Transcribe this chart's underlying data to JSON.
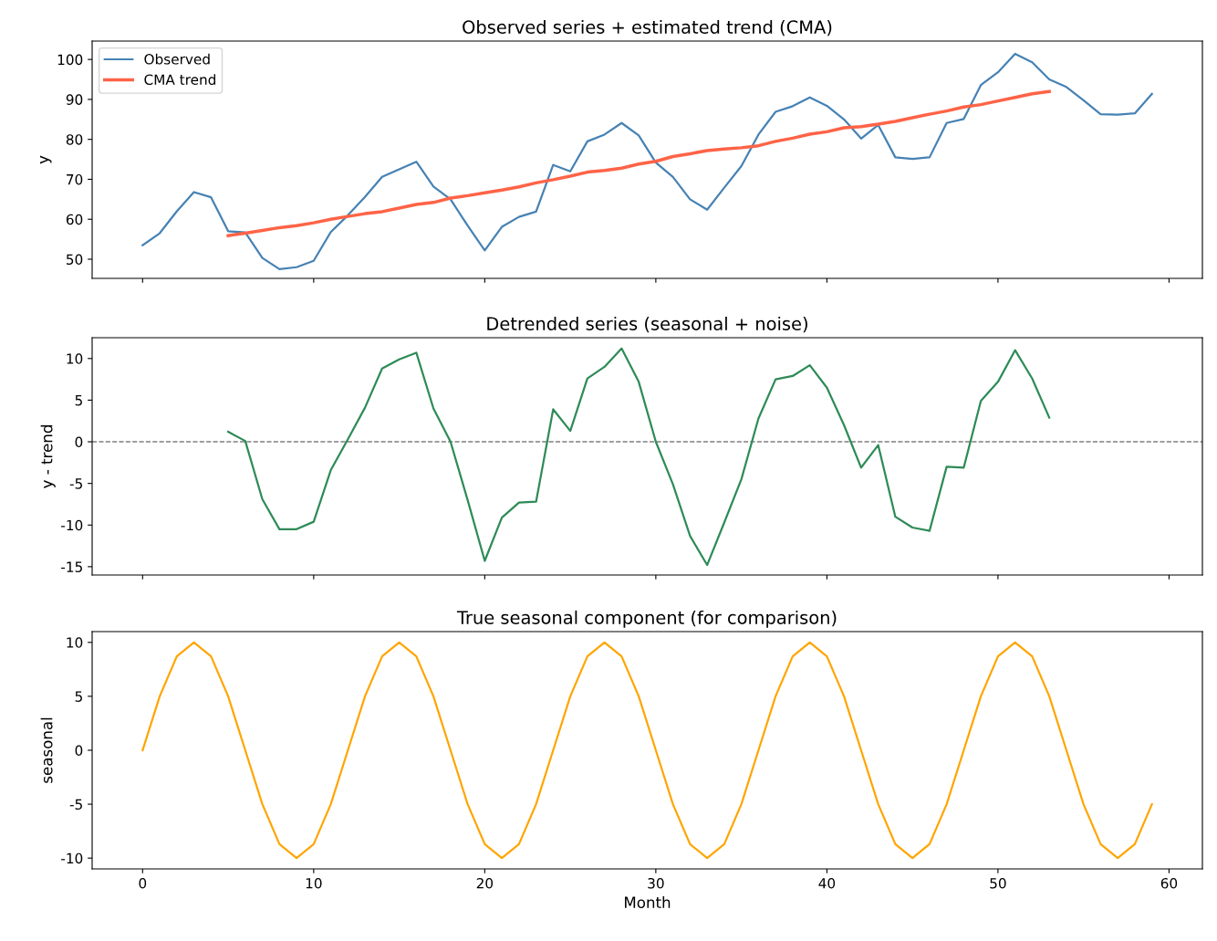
{
  "chart_data": [
    {
      "type": "line",
      "title": "Observed series + estimated trend (CMA)",
      "ylabel": "y",
      "xlim": [
        -2.95,
        61.95
      ],
      "xticks": [
        0,
        10,
        20,
        30,
        40,
        50,
        60
      ],
      "ylim": [
        45.2,
        104.6
      ],
      "yticks": [
        50,
        60,
        70,
        80,
        90,
        100
      ],
      "tick_labels": "y",
      "grid": false,
      "legend": "top left",
      "series": [
        {
          "name": "Observed",
          "color": "#4682b4",
          "x": [
            0,
            1,
            2,
            3,
            4,
            5,
            6,
            7,
            8,
            9,
            10,
            11,
            12,
            13,
            14,
            15,
            16,
            17,
            18,
            19,
            20,
            21,
            22,
            23,
            24,
            25,
            26,
            27,
            28,
            29,
            30,
            31,
            32,
            33,
            34,
            35,
            36,
            37,
            38,
            39,
            40,
            41,
            42,
            43,
            44,
            45,
            46,
            47,
            48,
            49,
            50,
            51,
            52,
            53,
            54,
            55,
            56,
            57,
            58,
            59
          ],
          "values": [
            53.5,
            56.5,
            62,
            66.8,
            65.5,
            57,
            56.7,
            50.3,
            47.5,
            48,
            49.6,
            56.8,
            61,
            65.6,
            70.6,
            72.5,
            74.4,
            68.2,
            65,
            58.4,
            52.2,
            58.1,
            60.6,
            61.9,
            73.6,
            72,
            79.5,
            81.2,
            84.1,
            81,
            74.2,
            70.6,
            65,
            62.4,
            67.9,
            73.3,
            81.2,
            86.9,
            88.3,
            90.5,
            88.4,
            85,
            80.2,
            83.6,
            75.5,
            75.1,
            75.5,
            84.1,
            85.1,
            93.6,
            96.8,
            101.4,
            99.3,
            95,
            93.1,
            89.8,
            86.3,
            86.2,
            86.5,
            91.4
          ]
        },
        {
          "name": "CMA trend",
          "color": "#ff6347",
          "x": [
            5,
            6,
            7,
            8,
            9,
            10,
            11,
            12,
            13,
            14,
            15,
            16,
            17,
            18,
            19,
            20,
            21,
            22,
            23,
            24,
            25,
            26,
            27,
            28,
            29,
            30,
            31,
            32,
            33,
            34,
            35,
            36,
            37,
            38,
            39,
            40,
            41,
            42,
            43,
            44,
            45,
            46,
            47,
            48,
            49,
            50,
            51,
            52,
            53
          ],
          "values": [
            55.9,
            56.5,
            57.2,
            57.9,
            58.4,
            59.1,
            60.0,
            60.7,
            61.4,
            61.9,
            62.8,
            63.7,
            64.2,
            65.3,
            65.9,
            66.6,
            67.3,
            68.1,
            69.1,
            69.9,
            70.8,
            71.8,
            72.2,
            72.8,
            73.8,
            74.5,
            75.7,
            76.4,
            77.2,
            77.6,
            77.9,
            78.4,
            79.5,
            80.3,
            81.3,
            81.9,
            82.9,
            83.2,
            83.8,
            84.5,
            85.4,
            86.3,
            87.1,
            88.1,
            88.7,
            89.6,
            90.5,
            91.4,
            92.0
          ]
        }
      ]
    },
    {
      "type": "line",
      "title": "Detrended series (seasonal + noise)",
      "ylabel": "y - trend",
      "xlim": [
        -2.95,
        61.95
      ],
      "xticks": [
        0,
        10,
        20,
        30,
        40,
        50,
        60
      ],
      "ylim": [
        -16,
        12.5
      ],
      "yticks": [
        -15,
        -10,
        -5,
        0,
        5,
        10
      ],
      "tick_labels": "y",
      "grid": false,
      "ref_lines": [
        {
          "axis": "y",
          "value": 0,
          "color": "#808080",
          "line_style": "dashed"
        }
      ],
      "series": [
        {
          "color": "#2e8b57",
          "x": [
            5,
            6,
            7,
            8,
            9,
            10,
            11,
            12,
            13,
            14,
            15,
            16,
            17,
            18,
            19,
            20,
            21,
            22,
            23,
            24,
            25,
            26,
            27,
            28,
            29,
            30,
            31,
            32,
            33,
            34,
            35,
            36,
            37,
            38,
            39,
            40,
            41,
            42,
            43,
            44,
            45,
            46,
            47,
            48,
            49,
            50,
            51,
            52,
            53
          ],
          "values": [
            1.2,
            0.1,
            -6.9,
            -10.5,
            -10.5,
            -9.6,
            -3.4,
            0.3,
            4.1,
            8.8,
            9.9,
            10.7,
            4.0,
            0,
            -7.0,
            -14.3,
            -9.1,
            -7.3,
            -7.2,
            3.9,
            1.3,
            7.6,
            9.0,
            11.2,
            7.2,
            0,
            -5.1,
            -11.3,
            -14.8,
            -9.7,
            -4.5,
            2.8,
            7.5,
            7.9,
            9.2,
            6.5,
            2.0,
            -3.1,
            -0.4,
            -9.0,
            -10.3,
            -10.7,
            -3.0,
            -3.1,
            4.9,
            7.2,
            11.0,
            7.6,
            2.9
          ]
        }
      ]
    },
    {
      "type": "line",
      "title": "True seasonal component (for comparison)",
      "xlabel": "Month",
      "ylabel": "seasonal",
      "xlim": [
        -2.95,
        61.95
      ],
      "xticks": [
        0,
        10,
        20,
        30,
        40,
        50,
        60
      ],
      "ylim": [
        -11,
        11
      ],
      "yticks": [
        -10,
        -5,
        0,
        5,
        10
      ],
      "grid": false,
      "series": [
        {
          "color": "#ffa500",
          "x": [
            0,
            1,
            2,
            3,
            4,
            5,
            6,
            7,
            8,
            9,
            10,
            11,
            12,
            13,
            14,
            15,
            16,
            17,
            18,
            19,
            20,
            21,
            22,
            23,
            24,
            25,
            26,
            27,
            28,
            29,
            30,
            31,
            32,
            33,
            34,
            35,
            36,
            37,
            38,
            39,
            40,
            41,
            42,
            43,
            44,
            45,
            46,
            47,
            48,
            49,
            50,
            51,
            52,
            53,
            54,
            55,
            56,
            57,
            58,
            59
          ],
          "values": [
            0,
            5,
            8.7,
            10,
            8.7,
            5,
            0,
            -5,
            -8.7,
            -10,
            -8.7,
            -5,
            0,
            5,
            8.7,
            10,
            8.7,
            5,
            0,
            -5,
            -8.7,
            -10,
            -8.7,
            -5,
            0,
            5,
            8.7,
            10,
            8.7,
            5,
            0,
            -5,
            -8.7,
            -10,
            -8.7,
            -5,
            0,
            5,
            8.7,
            10,
            8.7,
            5,
            0,
            -5,
            -8.7,
            -10,
            -8.7,
            -5,
            0,
            5,
            8.7,
            10,
            8.7,
            5,
            0,
            -5,
            -8.7,
            -10,
            -8.7,
            -5
          ]
        }
      ]
    }
  ]
}
